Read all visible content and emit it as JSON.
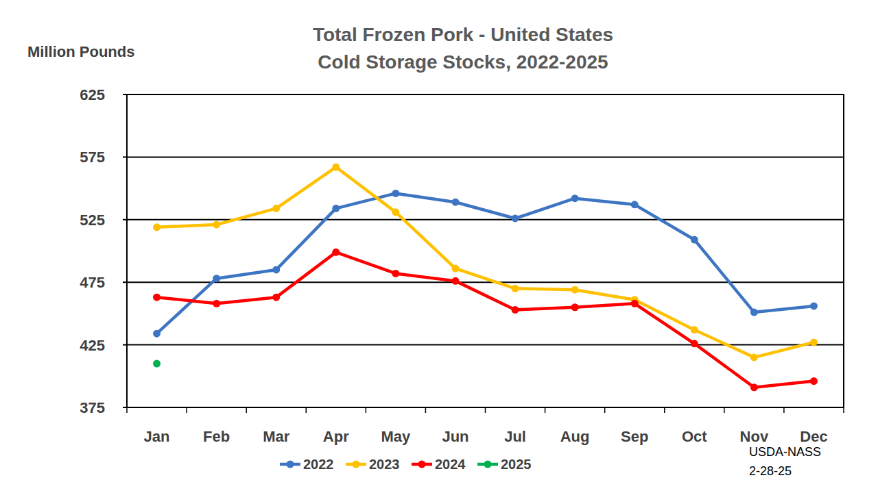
{
  "chart_data": {
    "type": "line",
    "title": "Total Frozen Pork - United States",
    "subtitle": "Cold Storage Stocks, 2022-2025",
    "y_label": "Million Pounds",
    "annotations": [
      "USDA-NASS",
      "2-28-25"
    ],
    "categories": [
      "Jan",
      "Feb",
      "Mar",
      "Apr",
      "May",
      "Jun",
      "Jul",
      "Aug",
      "Sep",
      "Oct",
      "Nov",
      "Dec"
    ],
    "series": [
      {
        "name": "2022",
        "color": "#3e75c2",
        "marker": "circle",
        "values": [
          434,
          478,
          485,
          534,
          546,
          539,
          526,
          542,
          537,
          509,
          451,
          456
        ]
      },
      {
        "name": "2023",
        "color": "#ffc000",
        "marker": "circle",
        "values": [
          519,
          521,
          534,
          567,
          531,
          486,
          470,
          469,
          461,
          437,
          415,
          427
        ]
      },
      {
        "name": "2024",
        "color": "#ff0000",
        "marker": "circle",
        "values": [
          463,
          458,
          463,
          499,
          482,
          476,
          453,
          455,
          458,
          426,
          391,
          396
        ]
      },
      {
        "name": "2025",
        "color": "#00b050",
        "marker": "circle",
        "values": [
          410,
          null,
          null,
          null,
          null,
          null,
          null,
          null,
          null,
          null,
          null,
          null
        ]
      }
    ],
    "ylim": [
      375,
      625
    ],
    "yticks": [
      375,
      425,
      475,
      525,
      575,
      625
    ],
    "grid": true,
    "legend": "bottom"
  }
}
